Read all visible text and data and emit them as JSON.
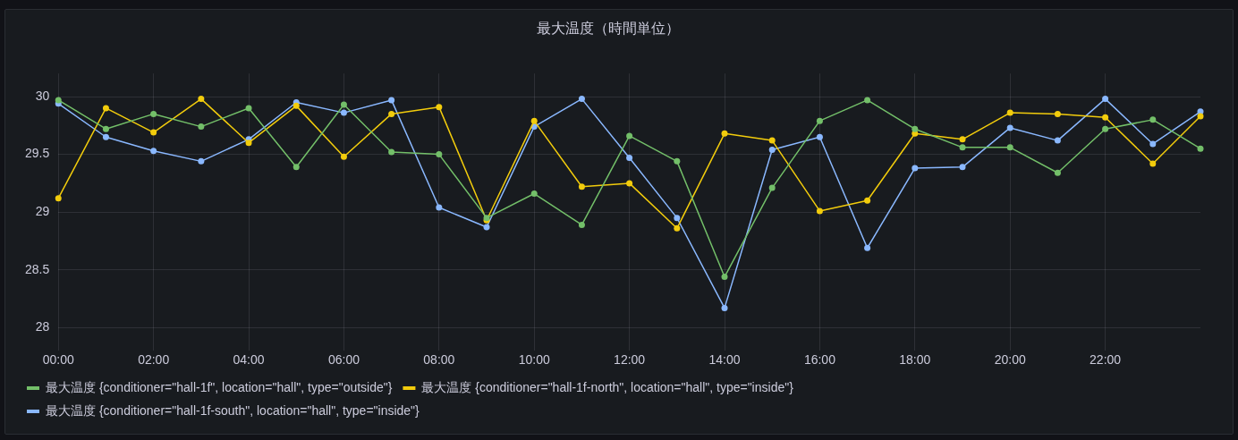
{
  "chart_data": {
    "type": "line",
    "title": "最大温度（時間単位）",
    "x": [
      0,
      1,
      2,
      3,
      4,
      5,
      6,
      7,
      8,
      9,
      10,
      11,
      12,
      13,
      14,
      15,
      16,
      17,
      18,
      19,
      20,
      21,
      22,
      23,
      24
    ],
    "series": [
      {
        "name": "最大温度 {conditioner=\"hall-1f\", location=\"hall\", type=\"outside\"}",
        "color": "#73bf69",
        "values": [
          29.97,
          29.72,
          29.85,
          29.74,
          29.9,
          29.39,
          29.93,
          29.52,
          29.5,
          28.95,
          29.16,
          28.89,
          29.66,
          29.44,
          28.44,
          29.21,
          29.79,
          29.97,
          29.72,
          29.56,
          29.56,
          29.34,
          29.72,
          29.8,
          29.55
        ]
      },
      {
        "name": "最大温度 {conditioner=\"hall-1f-north\", location=\"hall\", type=\"inside\"}",
        "color": "#f2cc0c",
        "values": [
          29.12,
          29.9,
          29.69,
          29.98,
          29.6,
          29.92,
          29.48,
          29.85,
          29.91,
          28.93,
          29.79,
          29.22,
          29.25,
          28.86,
          29.68,
          29.62,
          29.01,
          29.1,
          29.68,
          29.63,
          29.86,
          29.85,
          29.82,
          29.42,
          29.83
        ]
      },
      {
        "name": "最大温度 {conditioner=\"hall-1f-south\", location=\"hall\", type=\"inside\"}",
        "color": "#8ab8ff",
        "values": [
          29.94,
          29.65,
          29.53,
          29.44,
          29.63,
          29.95,
          29.86,
          29.97,
          29.04,
          28.87,
          29.74,
          29.98,
          29.47,
          28.95,
          28.17,
          29.54,
          29.65,
          28.69,
          29.38,
          29.39,
          29.73,
          29.62,
          29.98,
          29.59,
          29.87
        ]
      }
    ],
    "xlim": [
      0,
      24
    ],
    "xticks": [
      {
        "value": 0,
        "label": "00:00"
      },
      {
        "value": 2,
        "label": "02:00"
      },
      {
        "value": 4,
        "label": "04:00"
      },
      {
        "value": 6,
        "label": "06:00"
      },
      {
        "value": 8,
        "label": "08:00"
      },
      {
        "value": 10,
        "label": "10:00"
      },
      {
        "value": 12,
        "label": "12:00"
      },
      {
        "value": 14,
        "label": "14:00"
      },
      {
        "value": 16,
        "label": "16:00"
      },
      {
        "value": 18,
        "label": "18:00"
      },
      {
        "value": 20,
        "label": "20:00"
      },
      {
        "value": 22,
        "label": "22:00"
      }
    ],
    "ylim": [
      27.8,
      30.2
    ],
    "yticks": [
      28,
      28.5,
      29,
      29.5,
      30
    ],
    "grid": true,
    "legend": "bottom",
    "marker": "circle",
    "line_style": "solid"
  }
}
